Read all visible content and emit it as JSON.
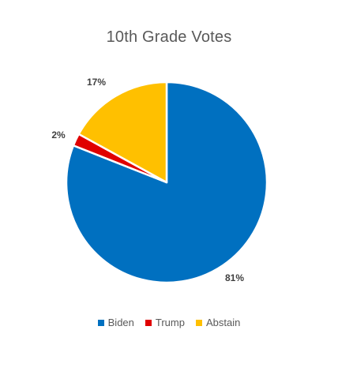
{
  "chart_data": {
    "type": "pie",
    "title": "10th Grade Votes",
    "categories": [
      "Biden",
      "Trump",
      "Abstain"
    ],
    "values": [
      81,
      2,
      17
    ],
    "data_labels": [
      "81%",
      "2%",
      "17%"
    ],
    "colors": [
      "#0070C0",
      "#E00000",
      "#FFC000"
    ],
    "legend_position": "bottom"
  }
}
